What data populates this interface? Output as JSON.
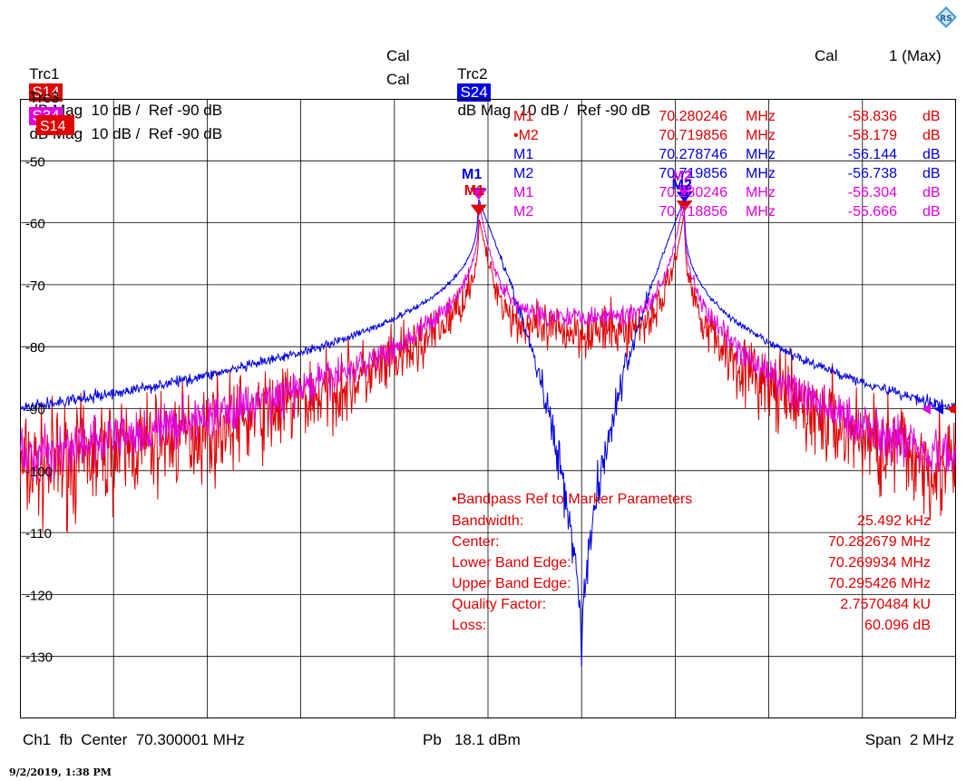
{
  "header": {
    "row1": {
      "trc1": "Trc1",
      "s14": "S14",
      "trc1_fmt": "dB Mag  10 dB /  Ref -90 dB",
      "trc1_cal": "Cal",
      "trc2": "Trc2",
      "s24": "S24",
      "trc2_fmt": "dB Mag  10 dB /  Ref -90 dB",
      "trc2_cal": "Cal",
      "max": "1 (Max)"
    },
    "row2": {
      "trc3": "Trc3",
      "s34": "S34",
      "trc3_fmt": "dB Mag  10 dB /  Ref -90 dB",
      "trc3_cal": "Cal"
    }
  },
  "colors": {
    "s14": "#e00000",
    "s24": "#0000e0",
    "s34": "#e000e0",
    "grid": "#000000"
  },
  "footer": {
    "left": "Ch1  fb  Center  70.300001 MHz",
    "mid": "Pb   18.1 dBm",
    "right": "Span  2 MHz"
  },
  "timestamp": "9/2/2019, 1:38 PM",
  "chart_data": {
    "type": "line",
    "trace_label": "S14",
    "x_center_mhz": 70.300001,
    "x_span_mhz": 2,
    "xlim": [
      69.300001,
      71.300001
    ],
    "ylim": [
      -140,
      -40
    ],
    "y_ticks": [
      {
        "value": -50,
        "label": "-50"
      },
      {
        "value": -60,
        "label": "-60"
      },
      {
        "value": -70,
        "label": "-70"
      },
      {
        "value": -80,
        "label": "-80"
      },
      {
        "value": -90,
        "label": "-90"
      },
      {
        "value": -100,
        "label": "-100"
      },
      {
        "value": -110,
        "label": "-110"
      },
      {
        "value": -120,
        "label": "-120"
      },
      {
        "value": -130,
        "label": "-130"
      }
    ],
    "grid": true,
    "series": [
      {
        "key": "s14",
        "floor": -77.5,
        "edge": -100,
        "noise": 8,
        "peak_x": [
          70.280246,
          70.719856
        ],
        "peak_y": [
          -58.836,
          -58.179
        ]
      },
      {
        "key": "s24",
        "floor": -130,
        "edge": -90,
        "noise": 1.2,
        "peak_x": [
          70.278746,
          70.719856
        ],
        "peak_y": [
          -56.144,
          -56.738
        ]
      },
      {
        "key": "s34",
        "floor": -75,
        "edge": -98,
        "noise": 4,
        "peak_x": [
          70.280246,
          70.718856
        ],
        "peak_y": [
          -56.304,
          -55.666
        ]
      }
    ],
    "markers": [
      {
        "trace": "s14",
        "name": "M1",
        "freq": "70.280246",
        "unit": "MHz",
        "value": "-58.836",
        "vunit": "dB"
      },
      {
        "trace": "s14",
        "name": "•M2",
        "freq": "70.719856",
        "unit": "MHz",
        "value": "-58.179",
        "vunit": "dB"
      },
      {
        "trace": "s24",
        "name": "M1",
        "freq": "70.278746",
        "unit": "MHz",
        "value": "-56.144",
        "vunit": "dB"
      },
      {
        "trace": "s24",
        "name": "M2",
        "freq": "70.719856",
        "unit": "MHz",
        "value": "-56.738",
        "vunit": "dB"
      },
      {
        "trace": "s34",
        "name": "M1",
        "freq": "70.280246",
        "unit": "MHz",
        "value": "-56.304",
        "vunit": "dB"
      },
      {
        "trace": "s34",
        "name": "M2",
        "freq": "70.718856",
        "unit": "MHz",
        "value": "-55.666",
        "vunit": "dB"
      }
    ],
    "plot_markers": {
      "m1": "M1",
      "m2": "M2"
    },
    "bandpass": {
      "title": "•Bandpass Ref to Marker Parameters",
      "rows": [
        {
          "label": "Bandwidth:",
          "value": "25.492 kHz"
        },
        {
          "label": "Center:",
          "value": "70.282679 MHz"
        },
        {
          "label": "Lower Band Edge:",
          "value": "70.269934 MHz"
        },
        {
          "label": "Upper Band Edge:",
          "value": "70.295426 MHz"
        },
        {
          "label": "Quality Factor:",
          "value": "2.7570484 kU"
        },
        {
          "label": "Loss:",
          "value": "60.096 dB"
        }
      ]
    }
  }
}
